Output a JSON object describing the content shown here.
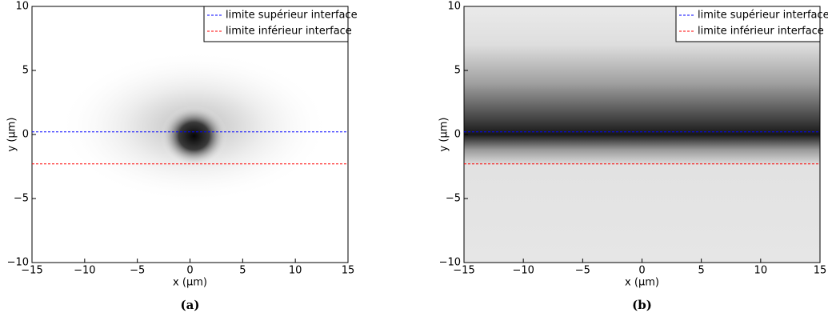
{
  "chart_data": [
    {
      "type": "line",
      "caption": "(a)",
      "xlabel": "x (µm)",
      "ylabel": "y (µm)",
      "xlim": [
        -15,
        15
      ],
      "ylim": [
        -10,
        10
      ],
      "xticks": [
        {
          "value": -15,
          "label": "−15"
        },
        {
          "value": -10,
          "label": "−10"
        },
        {
          "value": -5,
          "label": "−5"
        },
        0,
        5,
        10,
        15
      ],
      "yticks": [
        {
          "value": -10,
          "label": "−10"
        },
        {
          "value": -5,
          "label": "−5"
        },
        0,
        5,
        10
      ],
      "legend": "upper right",
      "series": [
        {
          "name": "limite supérieur interface",
          "color": "#0000ff",
          "x": [
            -15,
            15
          ],
          "values": [
            0.2,
            0.2
          ]
        },
        {
          "name": "limite inférieur interface",
          "color": "#ff0000",
          "x": [
            -15,
            15
          ],
          "values": [
            -2.3,
            -2.3
          ]
        }
      ]
    },
    {
      "type": "line",
      "caption": "(b)",
      "xlabel": "x (µm)",
      "ylabel": "y (µm)",
      "xlim": [
        -15,
        15
      ],
      "ylim": [
        -10,
        10
      ],
      "xticks": [
        {
          "value": -15,
          "label": "−15"
        },
        {
          "value": -10,
          "label": "−10"
        },
        {
          "value": -5,
          "label": "−5"
        },
        0,
        5,
        10,
        15
      ],
      "yticks": [
        {
          "value": -10,
          "label": "−10"
        },
        {
          "value": -5,
          "label": "−5"
        },
        0,
        5,
        10
      ],
      "legend": "upper right",
      "series": [
        {
          "name": "limite supérieur interface",
          "color": "#0000ff",
          "x": [
            -15,
            15
          ],
          "values": [
            0.2,
            0.2
          ]
        },
        {
          "name": "limite inférieur interface",
          "color": "#ff0000",
          "x": [
            -15,
            15
          ],
          "values": [
            -2.3,
            -2.3
          ]
        }
      ]
    }
  ]
}
